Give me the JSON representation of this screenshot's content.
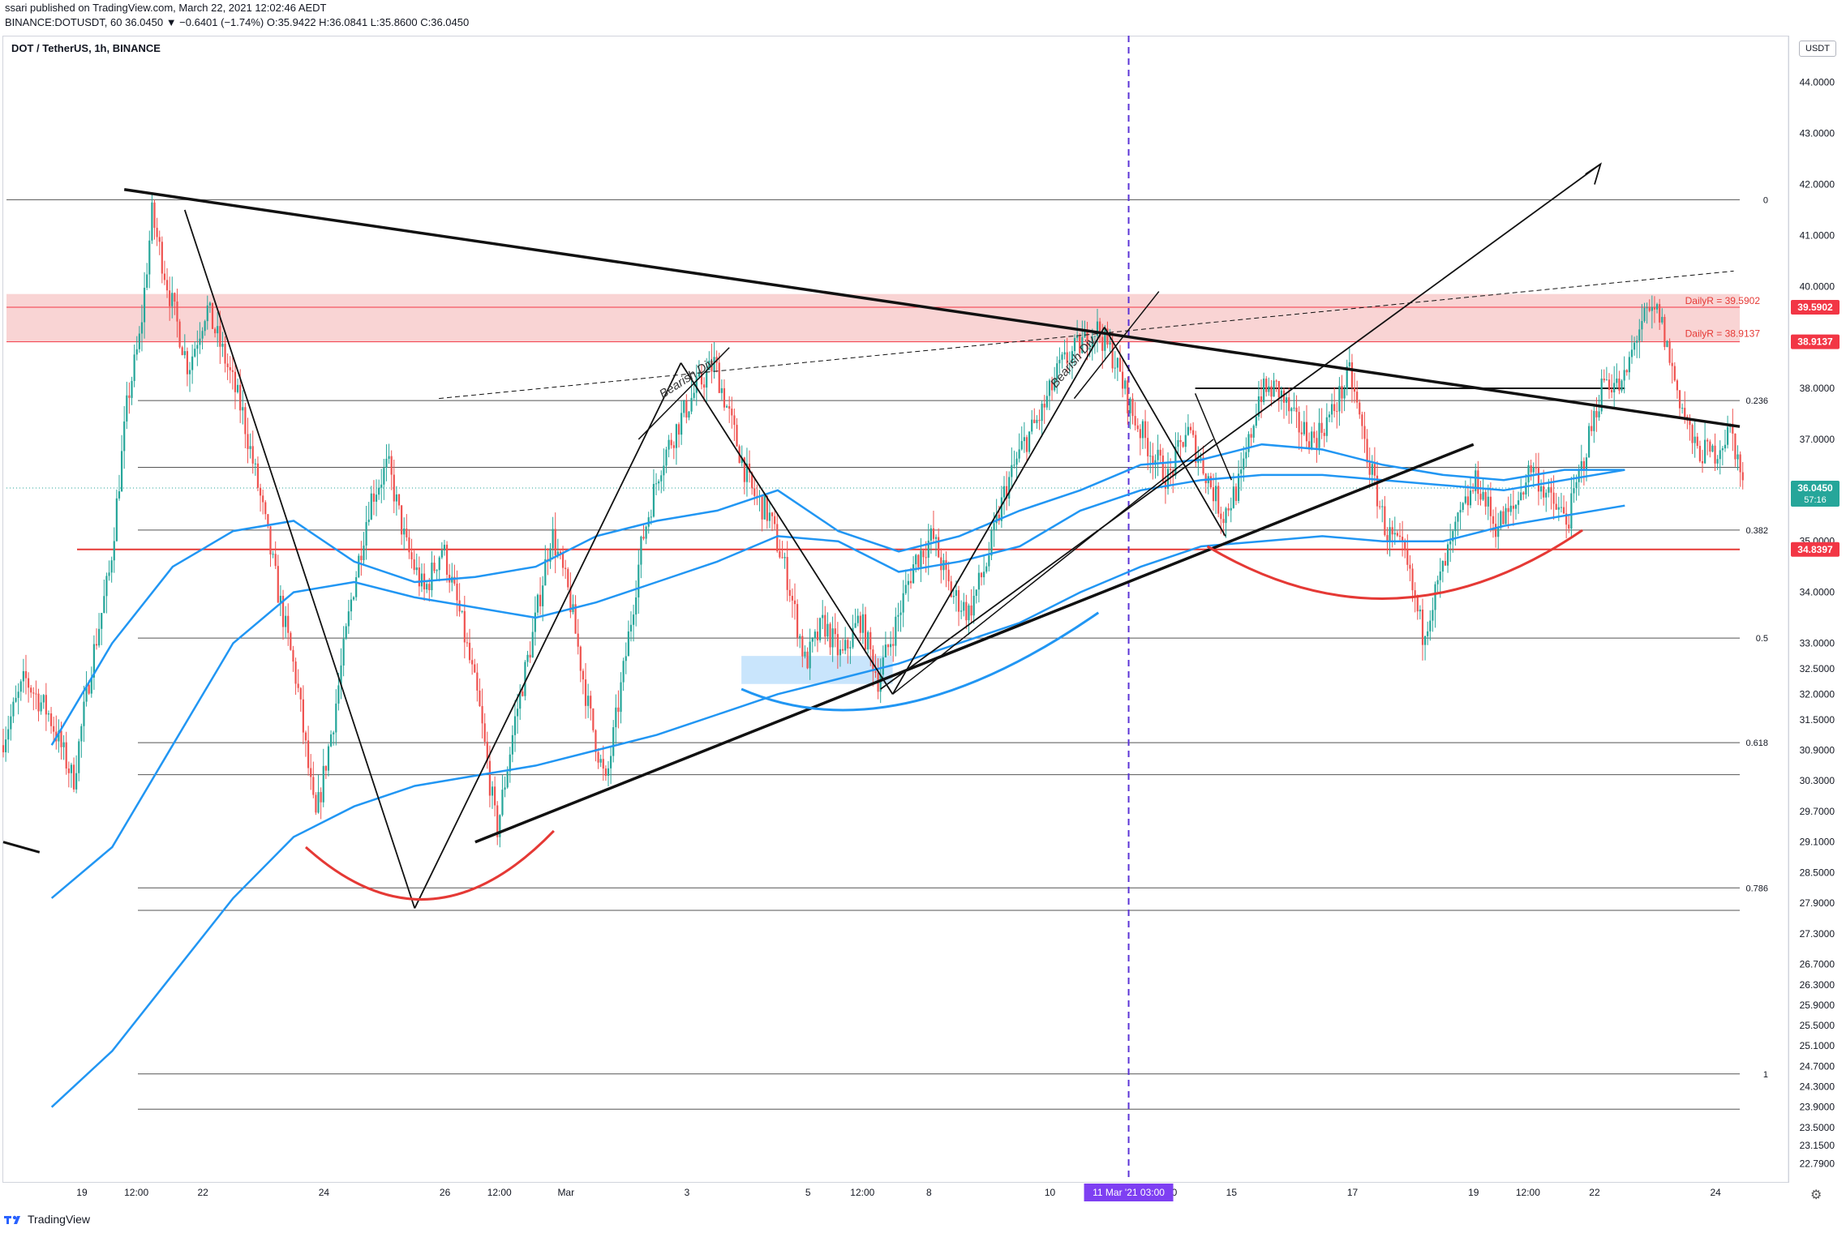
{
  "header": {
    "line1": "ssari published on TradingView.com, March 22, 2021 12:02:46 AEDT",
    "line2": "BINANCE:DOTUSDT, 60 36.0450 ▼ −0.6401 (−1.74%) O:35.9422 H:36.0841 L:35.8600 C:36.0450"
  },
  "footer": {
    "brand": "TradingView"
  },
  "chart_data": {
    "type": "line",
    "title": "DOT / TetherUS, 1h, BINANCE",
    "currency": "USDT",
    "ylim": [
      22.5,
      44.7
    ],
    "price_ticks": [
      "44.0000",
      "43.0000",
      "42.0000",
      "41.0000",
      "40.0000",
      "38.0000",
      "37.0000",
      "35.0000",
      "34.0000",
      "33.0000",
      "32.5000",
      "32.0000",
      "31.5000",
      "30.9000",
      "30.3000",
      "29.7000",
      "29.1000",
      "28.5000",
      "27.9000",
      "27.3000",
      "26.7000",
      "26.3000",
      "25.9000",
      "25.5000",
      "25.1000",
      "24.7000",
      "24.3000",
      "23.9000",
      "23.5000",
      "23.1500",
      "22.7900"
    ],
    "price_tick_values": [
      44,
      43,
      42,
      41,
      40,
      38,
      37,
      35,
      34,
      33,
      32.5,
      32,
      31.5,
      30.9,
      30.3,
      29.7,
      29.1,
      28.5,
      27.9,
      27.3,
      26.7,
      26.3,
      25.9,
      25.5,
      25.1,
      24.7,
      24.3,
      23.9,
      23.5,
      23.15,
      22.79
    ],
    "time_ticks": [
      "19",
      "12:00",
      "22",
      "24",
      "26",
      "12:00",
      "Mar",
      "3",
      "5",
      "12:00",
      "8",
      "10",
      "12:00",
      "15",
      "17",
      "19",
      "12:00",
      "22",
      "24"
    ],
    "time_tick_days": [
      -11.5,
      -10.6,
      -9.5,
      -7.5,
      -5.5,
      -4.6,
      -3.5,
      -1.5,
      0.5,
      1.4,
      2.5,
      4.5,
      6.4,
      7.5,
      9.5,
      11.5,
      12.4,
      13.5,
      15.5
    ],
    "crosshair": {
      "label": "11 Mar '21   03:00",
      "day": 5.8
    },
    "fib_levels": [
      {
        "label": "0",
        "value": 41.7
      },
      {
        "label": "0.236",
        "value": 37.76
      },
      {
        "label": "0.382",
        "value": 35.22
      },
      {
        "label": "0.5",
        "value": 33.1
      },
      {
        "label": "0.618",
        "value": 31.05
      },
      {
        "label": "0.786",
        "value": 28.2
      },
      {
        "label": "1",
        "value": 24.55
      }
    ],
    "extra_levels": [
      36.45,
      30.42,
      27.76,
      23.86
    ],
    "price_badges": [
      {
        "label": "39.5902",
        "value": 39.5902,
        "color": "#f23645"
      },
      {
        "label": "38.9137",
        "value": 38.9137,
        "color": "#f23645"
      },
      {
        "label": "36.0450",
        "sub": "57:16",
        "value": 36.045,
        "color": "#26a69a"
      },
      {
        "label": "34.8397",
        "value": 34.8397,
        "color": "#f23645"
      }
    ],
    "zone_labels": [
      "DailyR = 39.5902",
      "DailyR = 38.9137"
    ],
    "annotations": [
      "Bearish Div",
      "Bearish Div"
    ],
    "series": [
      {
        "name": "ma_fast",
        "color": "#2196f3",
        "x": [
          -12,
          -11,
          -10,
          -9,
          -8,
          -7,
          -6,
          -5,
          -4,
          -3,
          -2,
          -1,
          0,
          1,
          2,
          3,
          4,
          5,
          6,
          7,
          8,
          9,
          10,
          11,
          12,
          13,
          14
        ],
        "y": [
          31,
          33,
          34.5,
          35.2,
          35.4,
          34.6,
          34.2,
          34.3,
          34.5,
          35.1,
          35.4,
          35.6,
          36.0,
          35.2,
          34.8,
          35.1,
          35.6,
          36.0,
          36.5,
          36.6,
          36.9,
          36.8,
          36.5,
          36.3,
          36.2,
          36.4,
          36.4
        ]
      },
      {
        "name": "ma_mid",
        "color": "#2196f3",
        "x": [
          -12,
          -11,
          -10,
          -9,
          -8,
          -7,
          -6,
          -5,
          -4,
          -3,
          -2,
          -1,
          0,
          1,
          2,
          3,
          4,
          5,
          6,
          7,
          8,
          9,
          10,
          11,
          12,
          13,
          14
        ],
        "y": [
          28,
          29,
          31,
          33,
          34.0,
          34.2,
          33.9,
          33.7,
          33.5,
          33.8,
          34.2,
          34.6,
          35.1,
          35.0,
          34.4,
          34.6,
          34.9,
          35.6,
          36.0,
          36.2,
          36.3,
          36.3,
          36.2,
          36.1,
          36.0,
          36.2,
          36.4
        ]
      },
      {
        "name": "ma_slow",
        "color": "#2196f3",
        "x": [
          -12,
          -11,
          -10,
          -9,
          -8,
          -7,
          -6,
          -5,
          -4,
          -3,
          -2,
          -1,
          0,
          1,
          2,
          3,
          4,
          5,
          6,
          7,
          8,
          9,
          10,
          11,
          12,
          13,
          14
        ],
        "y": [
          23.9,
          25,
          26.5,
          28,
          29.2,
          29.8,
          30.2,
          30.4,
          30.6,
          30.9,
          31.2,
          31.6,
          32.0,
          32.3,
          32.6,
          33.0,
          33.4,
          34.0,
          34.5,
          34.9,
          35.0,
          35.1,
          35.0,
          35.0,
          35.3,
          35.5,
          35.7
        ]
      }
    ]
  }
}
